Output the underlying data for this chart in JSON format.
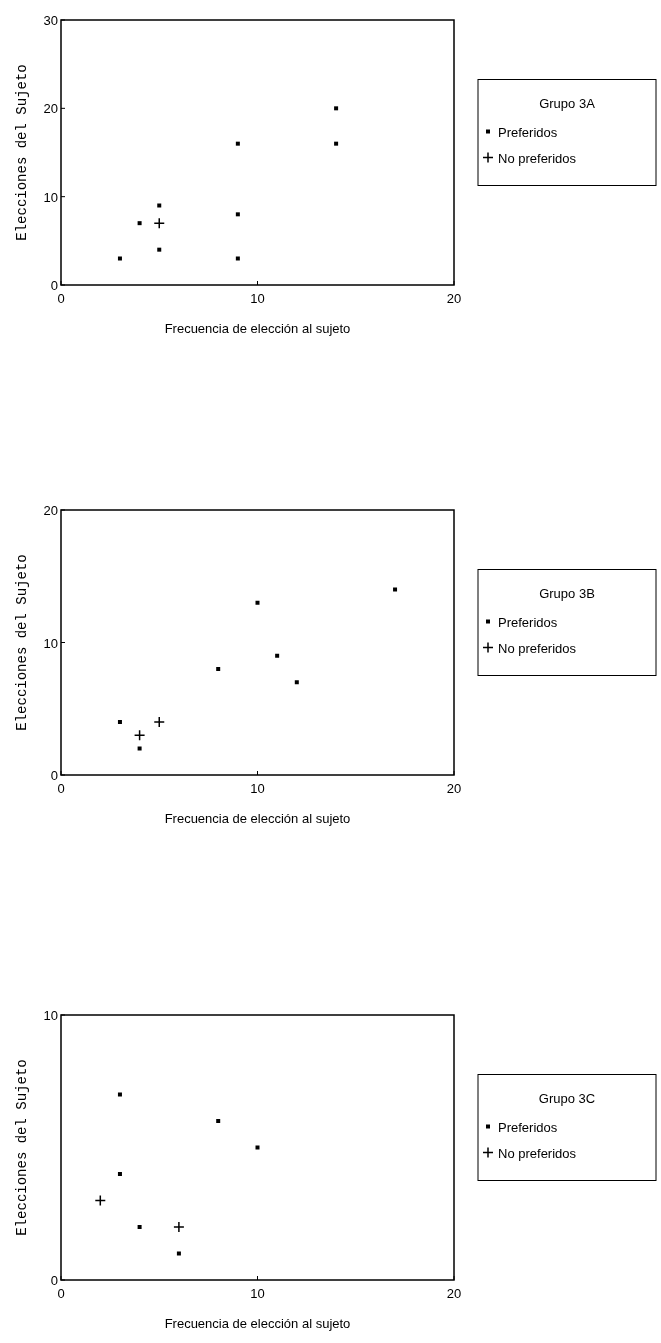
{
  "chart_data": [
    {
      "type": "scatter",
      "xlabel": "Frecuencia de elección al sujeto",
      "ylabel": "Elecciones del Sujeto",
      "legend_title": "Grupo 3A",
      "legend": "right",
      "xlim": [
        0,
        20
      ],
      "xticks": [
        0,
        10,
        20
      ],
      "ylim": [
        0,
        30
      ],
      "yticks": [
        0,
        10,
        20,
        30
      ],
      "grid": false,
      "series": [
        {
          "name": "Preferidos",
          "color": "#000000",
          "marker": "square",
          "x": [
            3,
            4,
            5,
            5,
            9,
            9,
            9,
            14,
            14
          ],
          "values": [
            3,
            7,
            9,
            4,
            16,
            8,
            3,
            20,
            16
          ]
        },
        {
          "name": "No preferidos",
          "color": "#000000",
          "marker": "cross",
          "x": [
            5
          ],
          "values": [
            7
          ]
        }
      ]
    },
    {
      "type": "scatter",
      "xlabel": "Frecuencia de elección al sujeto",
      "ylabel": "Elecciones del Sujeto",
      "legend_title": "Grupo 3B",
      "legend": "right",
      "xlim": [
        0,
        20
      ],
      "xticks": [
        0,
        10,
        20
      ],
      "ylim": [
        0,
        20
      ],
      "yticks": [
        0,
        10,
        20
      ],
      "grid": false,
      "series": [
        {
          "name": "Preferidos",
          "color": "#000000",
          "marker": "square",
          "x": [
            3,
            4,
            8,
            10,
            11,
            12,
            17
          ],
          "values": [
            4,
            2,
            8,
            13,
            9,
            7,
            14
          ]
        },
        {
          "name": "No preferidos",
          "color": "#000000",
          "marker": "cross",
          "x": [
            4,
            5
          ],
          "values": [
            3,
            4
          ]
        }
      ]
    },
    {
      "type": "scatter",
      "xlabel": "Frecuencia de elección al sujeto",
      "ylabel": "Elecciones del Sujeto",
      "legend_title": "Grupo 3C",
      "legend": "right",
      "xlim": [
        0,
        20
      ],
      "xticks": [
        0,
        10,
        20
      ],
      "ylim": [
        0,
        10
      ],
      "yticks": [
        0,
        10
      ],
      "grid": false,
      "series": [
        {
          "name": "Preferidos",
          "color": "#000000",
          "marker": "square",
          "x": [
            3,
            3,
            4,
            6,
            8,
            10
          ],
          "values": [
            7,
            4,
            2,
            1,
            6,
            5
          ]
        },
        {
          "name": "No preferidos",
          "color": "#000000",
          "marker": "cross",
          "x": [
            2,
            6
          ],
          "values": [
            3,
            2
          ]
        }
      ]
    }
  ]
}
